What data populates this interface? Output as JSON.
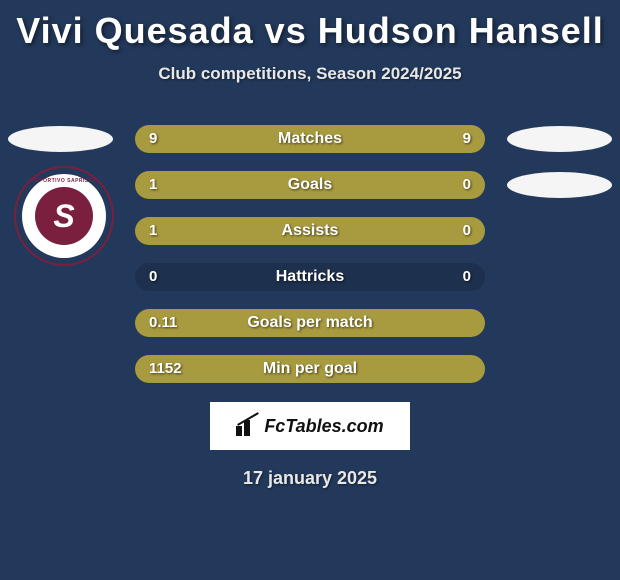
{
  "title": "Vivi Quesada vs Hudson Hansell",
  "subtitle": "Club competitions, Season 2024/2025",
  "date": "17 january 2025",
  "branding": "FcTables.com",
  "colors": {
    "background": "#23395b",
    "bar_fill": "#a89a3f",
    "track": "rgba(0,0,0,0.15)",
    "pill": "#f5f5f5",
    "text": "#ffffff",
    "club_primary": "#7a1f3d"
  },
  "club_logo": {
    "letter": "S",
    "top_text": "DEPORTIVO SAPRISSA"
  },
  "stats": [
    {
      "label": "Matches",
      "left_val": "9",
      "right_val": "9",
      "left_pct": 50,
      "right_pct": 50,
      "show_pill_left": true,
      "show_pill_right": true
    },
    {
      "label": "Goals",
      "left_val": "1",
      "right_val": "0",
      "left_pct": 75,
      "right_pct": 25,
      "show_pill_left": false,
      "show_pill_right": true
    },
    {
      "label": "Assists",
      "left_val": "1",
      "right_val": "0",
      "left_pct": 75,
      "right_pct": 25,
      "show_pill_left": false,
      "show_pill_right": false
    },
    {
      "label": "Hattricks",
      "left_val": "0",
      "right_val": "0",
      "left_pct": 0,
      "right_pct": 0,
      "show_pill_left": false,
      "show_pill_right": false
    },
    {
      "label": "Goals per match",
      "left_val": "0.11",
      "right_val": "",
      "left_pct": 100,
      "right_pct": 0,
      "show_pill_left": false,
      "show_pill_right": false
    },
    {
      "label": "Min per goal",
      "left_val": "1152",
      "right_val": "",
      "left_pct": 100,
      "right_pct": 0,
      "show_pill_left": false,
      "show_pill_right": false
    }
  ]
}
